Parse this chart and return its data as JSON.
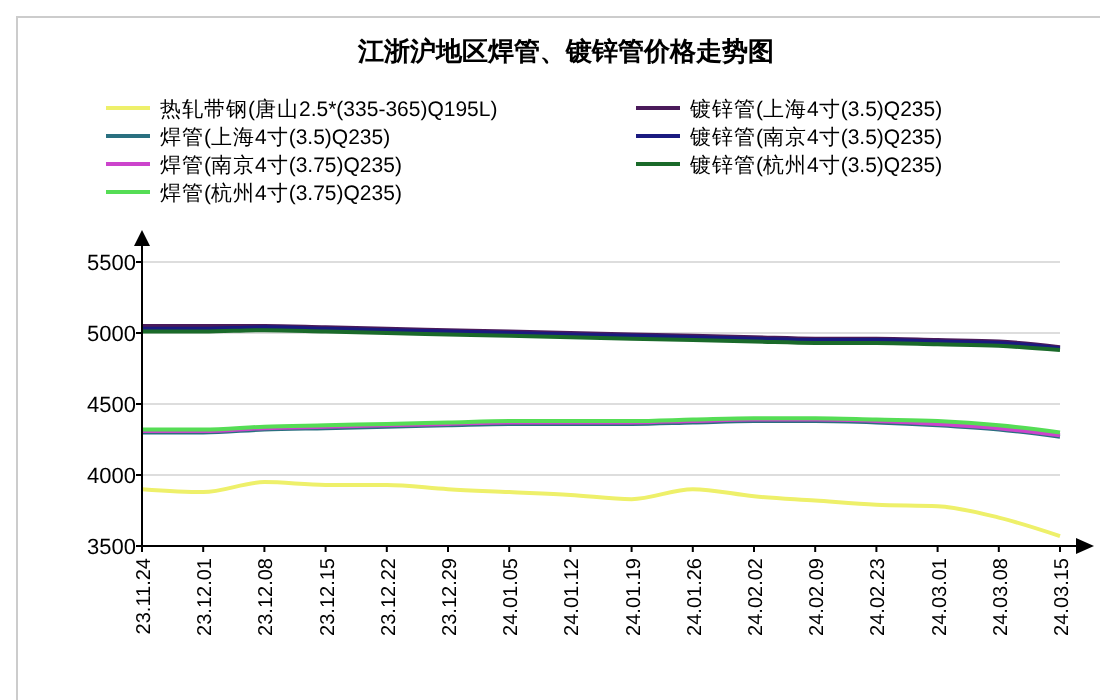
{
  "chart_data": {
    "type": "line",
    "title": "江浙沪地区焊管、镀锌管价格走势图",
    "categories": [
      "23.11.24",
      "23.12.01",
      "23.12.08",
      "23.12.15",
      "23.12.22",
      "23.12.29",
      "24.01.05",
      "24.01.12",
      "24.01.19",
      "24.01.26",
      "24.02.02",
      "24.02.09",
      "24.02.23",
      "24.03.01",
      "24.03.08",
      "24.03.15"
    ],
    "series": [
      {
        "name": "热轧带钢(唐山2.5*(335-365)Q195L)",
        "color": "#eef06a",
        "values": [
          3900,
          3880,
          3950,
          3930,
          3930,
          3900,
          3880,
          3860,
          3830,
          3900,
          3850,
          3820,
          3790,
          3780,
          3700,
          3570
        ]
      },
      {
        "name": "焊管(上海4寸(3.5)Q235)",
        "color": "#2a7080",
        "values": [
          4300,
          4300,
          4320,
          4330,
          4340,
          4350,
          4360,
          4360,
          4360,
          4370,
          4380,
          4380,
          4370,
          4350,
          4320,
          4270
        ]
      },
      {
        "name": "焊管(南京4寸(3.75)Q235)",
        "color": "#cc44cc",
        "values": [
          4310,
          4310,
          4330,
          4340,
          4350,
          4360,
          4370,
          4370,
          4370,
          4380,
          4390,
          4390,
          4380,
          4360,
          4330,
          4280
        ]
      },
      {
        "name": "焊管(杭州4寸(3.75)Q235)",
        "color": "#55dd55",
        "values": [
          4320,
          4320,
          4340,
          4350,
          4360,
          4370,
          4380,
          4380,
          4380,
          4390,
          4400,
          4400,
          4390,
          4380,
          4350,
          4300
        ]
      },
      {
        "name": "镀锌管(上海4寸(3.5)Q235)",
        "color": "#4a1a5a",
        "values": [
          5050,
          5050,
          5050,
          5040,
          5030,
          5020,
          5010,
          5000,
          4990,
          4980,
          4970,
          4960,
          4960,
          4950,
          4940,
          4900
        ]
      },
      {
        "name": "镀锌管(南京4寸(3.5)Q235)",
        "color": "#1a1a80",
        "values": [
          5030,
          5030,
          5040,
          5030,
          5020,
          5010,
          5000,
          4990,
          4980,
          4970,
          4960,
          4950,
          4950,
          4940,
          4930,
          4890
        ]
      },
      {
        "name": "镀锌管(杭州4寸(3.5)Q235)",
        "color": "#1a6a2a",
        "values": [
          5010,
          5010,
          5020,
          5010,
          5000,
          4990,
          4980,
          4970,
          4960,
          4950,
          4940,
          4930,
          4930,
          4920,
          4910,
          4880
        ]
      }
    ],
    "ylim": [
      3500,
      5500
    ],
    "yticks": [
      3500,
      4000,
      4500,
      5000,
      5500
    ],
    "grid": "y",
    "legend": "top",
    "marker": "none",
    "line_style": "solid"
  }
}
